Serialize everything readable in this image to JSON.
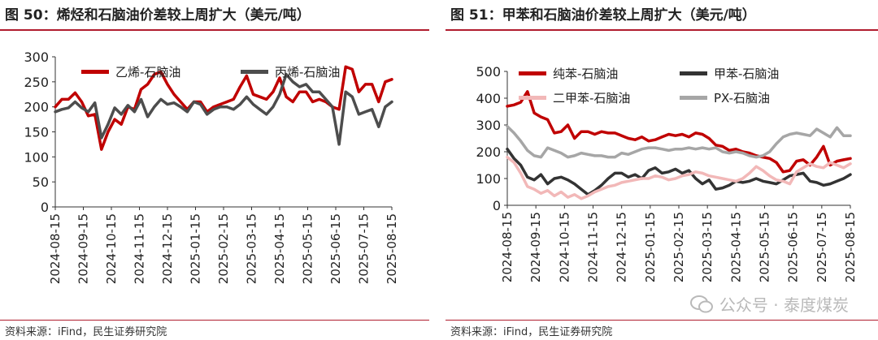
{
  "left": {
    "title": "图 50：烯烃和石脑油价差较上周扩大（美元/吨）",
    "source": "资料来源：iFind，民生证券研究院"
  },
  "right": {
    "title": "图 51：甲苯和石脑油价差较上周扩大（美元/吨）",
    "source": "资料来源：iFind，民生证券研究院"
  },
  "watermark": {
    "text": "公众号 · 泰度煤炭"
  },
  "chart_data": [
    {
      "type": "line",
      "title": "图 50：烯烃和石脑油价差较上周扩大（美元/吨）",
      "ylim": [
        0,
        300
      ],
      "yticks": [
        0,
        50,
        100,
        150,
        200,
        250,
        300
      ],
      "xticks": [
        "2024-08-15",
        "2024-09-15",
        "2024-10-15",
        "2024-11-15",
        "2024-12-15",
        "2025-01-15",
        "2025-02-15",
        "2025-03-15",
        "2025-04-15",
        "2025-05-15",
        "2025-06-15",
        "2025-07-15",
        "2025-08-15"
      ],
      "xlim": [
        0,
        52
      ],
      "series": [
        {
          "name": "乙烯-石脑油",
          "color": "#c00000",
          "values": [
            200,
            215,
            215,
            228,
            210,
            182,
            185,
            115,
            150,
            175,
            165,
            200,
            195,
            235,
            245,
            265,
            270,
            245,
            225,
            210,
            195,
            210,
            210,
            190,
            200,
            205,
            210,
            215,
            240,
            262,
            225,
            220,
            215,
            230,
            258,
            220,
            210,
            230,
            230,
            210,
            215,
            210,
            200,
            195,
            280,
            275,
            230,
            245,
            245,
            210,
            250,
            255
          ]
        },
        {
          "name": "丙烯-石脑油",
          "color": "#4d4d4d",
          "values": [
            190,
            195,
            198,
            210,
            198,
            190,
            208,
            138,
            165,
            198,
            185,
            203,
            190,
            215,
            180,
            200,
            215,
            205,
            208,
            200,
            190,
            210,
            205,
            185,
            195,
            200,
            200,
            195,
            205,
            220,
            205,
            195,
            185,
            200,
            225,
            265,
            250,
            240,
            245,
            230,
            230,
            215,
            200,
            125,
            230,
            220,
            185,
            190,
            195,
            160,
            200,
            210
          ]
        }
      ]
    },
    {
      "type": "line",
      "title": "图 51：甲苯和石脑油价差较上周扩大（美元/吨）",
      "ylim": [
        0,
        500
      ],
      "yticks": [
        0,
        100,
        200,
        300,
        400,
        500
      ],
      "xticks": [
        "2024-08-15",
        "2024-09-15",
        "2024-10-15",
        "2024-11-15",
        "2024-12-15",
        "2025-01-15",
        "2025-02-15",
        "2025-03-15",
        "2025-04-15",
        "2025-05-15",
        "2025-06-15",
        "2025-07-15",
        "2025-08-15"
      ],
      "xlim": [
        0,
        52
      ],
      "series": [
        {
          "name": "纯苯-石脑油",
          "color": "#c00000",
          "values": [
            370,
            375,
            385,
            425,
            345,
            330,
            320,
            270,
            275,
            300,
            250,
            275,
            275,
            265,
            275,
            270,
            270,
            260,
            250,
            245,
            255,
            240,
            245,
            255,
            265,
            260,
            265,
            255,
            270,
            265,
            250,
            225,
            220,
            205,
            210,
            200,
            195,
            185,
            180,
            175,
            160,
            125,
            130,
            165,
            170,
            150,
            180,
            220,
            150,
            165,
            170,
            175
          ]
        },
        {
          "name": "甲苯-石脑油",
          "color": "#333333",
          "values": [
            210,
            175,
            150,
            105,
            95,
            115,
            80,
            100,
            105,
            95,
            80,
            60,
            40,
            55,
            75,
            100,
            120,
            120,
            105,
            115,
            100,
            130,
            140,
            120,
            125,
            135,
            120,
            130,
            100,
            80,
            95,
            60,
            65,
            75,
            90,
            85,
            90,
            100,
            90,
            85,
            80,
            95,
            110,
            115,
            120,
            90,
            85,
            75,
            80,
            90,
            100,
            115
          ]
        },
        {
          "name": "二甲苯-石脑油",
          "color": "#f2b8b8",
          "values": [
            180,
            160,
            120,
            70,
            60,
            45,
            55,
            35,
            50,
            30,
            40,
            25,
            35,
            50,
            60,
            70,
            75,
            85,
            90,
            95,
            100,
            100,
            110,
            105,
            95,
            100,
            110,
            115,
            125,
            120,
            110,
            105,
            100,
            95,
            90,
            100,
            120,
            145,
            130,
            110,
            95,
            90,
            80,
            125,
            140,
            155,
            145,
            140,
            160,
            150,
            140,
            155
          ]
        },
        {
          "name": "PX-石脑油",
          "color": "#a6a6a6",
          "values": [
            295,
            270,
            240,
            205,
            185,
            180,
            215,
            205,
            195,
            180,
            185,
            195,
            190,
            185,
            185,
            180,
            180,
            195,
            190,
            200,
            210,
            215,
            215,
            210,
            205,
            210,
            210,
            215,
            210,
            215,
            210,
            215,
            200,
            195,
            200,
            195,
            185,
            180,
            185,
            200,
            230,
            255,
            265,
            270,
            265,
            260,
            285,
            270,
            255,
            290,
            260,
            260
          ]
        }
      ]
    }
  ]
}
